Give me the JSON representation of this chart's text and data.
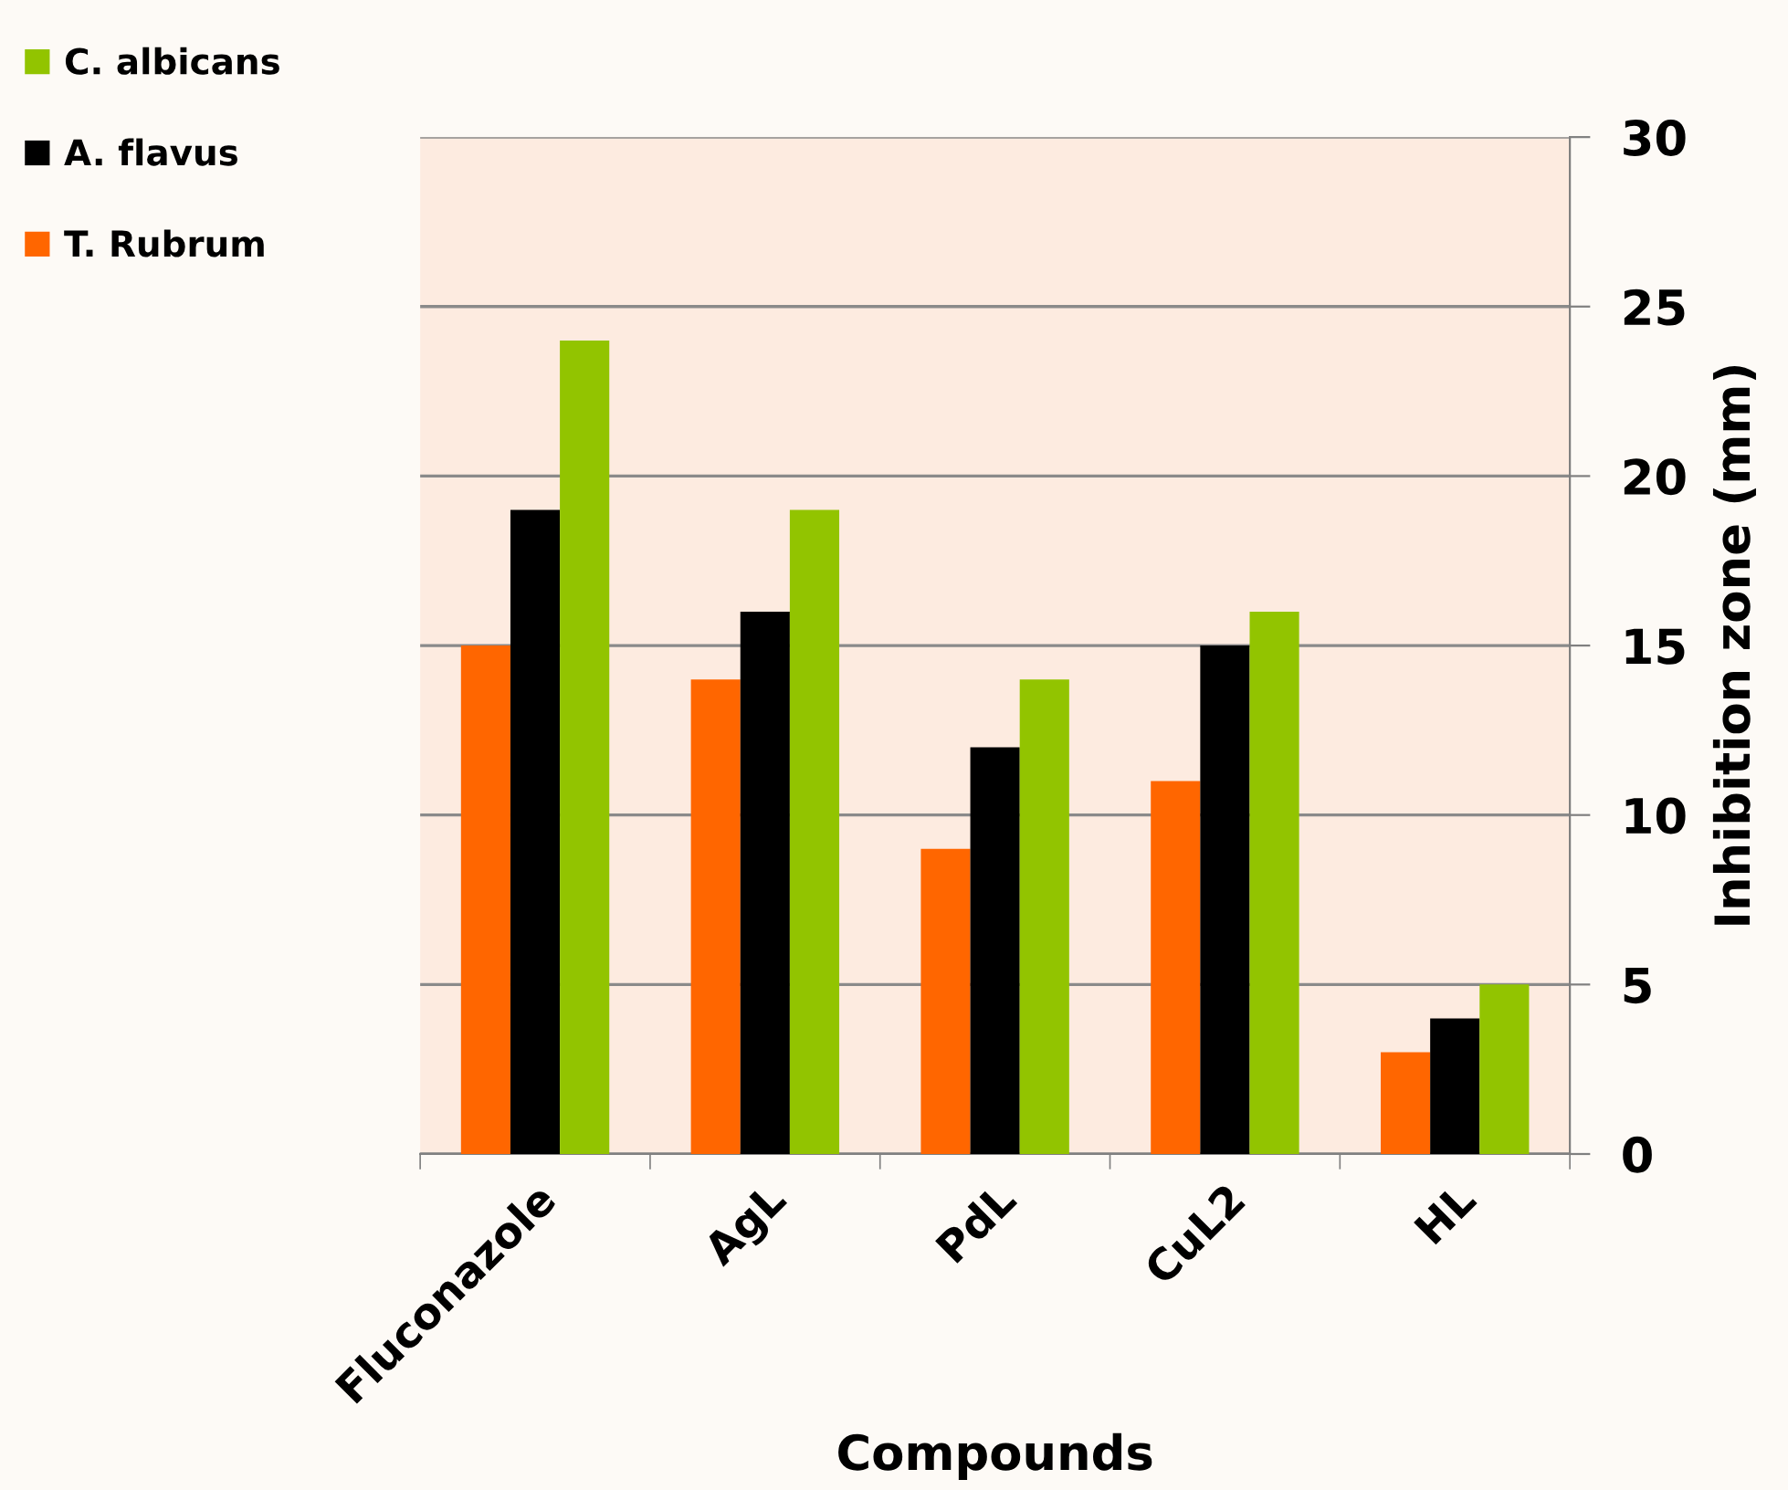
{
  "chart_data": {
    "type": "bar",
    "xlabel": "Compounds",
    "ylabel": "Inhibition zone (mm)",
    "categories": [
      "Fluconazole",
      "AgL",
      "PdL",
      "CuL2",
      "HL"
    ],
    "series": [
      {
        "name": "T. Rubrum",
        "color": "#ff6600",
        "values": [
          15,
          14,
          9,
          11,
          3
        ]
      },
      {
        "name": "A. flavus",
        "color": "#000000",
        "values": [
          19,
          16,
          12,
          15,
          4
        ]
      },
      {
        "name": "C. albicans",
        "color": "#92c400",
        "values": [
          24,
          19,
          14,
          16,
          5
        ]
      }
    ],
    "ylim": [
      0,
      30
    ],
    "yticks": [
      0,
      5,
      10,
      15,
      20,
      25,
      30
    ],
    "grid": "y",
    "legend": "top left"
  }
}
